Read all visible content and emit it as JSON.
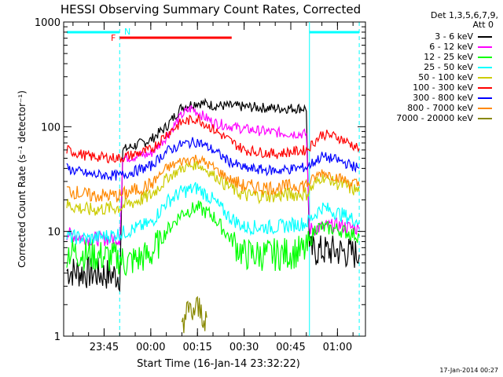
{
  "page": {
    "title": "HESSI Observing Summary Count Rates, Corrected",
    "date_stamp": "17-Jan-2014 00:27"
  },
  "legend": {
    "header_lines": [
      "Det 1,3,5,6,7,9,",
      "Att 0"
    ],
    "position": "top-right"
  },
  "chart_data": {
    "type": "line",
    "title": "HESSI Observing Summary Count Rates, Corrected",
    "xlabel": "Start Time (16-Jan-14 23:32:22)",
    "ylabel": "Corrected Count Rate (s⁻¹ detector⁻¹)",
    "y_scale": "log",
    "ylim": [
      1,
      1000
    ],
    "xlim": [
      "23:32",
      "01:09"
    ],
    "x_ticks": [
      "23:45",
      "00:00",
      "00:15",
      "00:30",
      "00:45",
      "01:00"
    ],
    "y_ticks": [
      "1",
      "10",
      "100",
      "1000"
    ],
    "grid": false,
    "annotations": [
      {
        "text": "F",
        "color": "#ff0000"
      },
      {
        "text": "N",
        "color": "#00ffff"
      }
    ],
    "time_markers": [
      {
        "time": "23:50",
        "style": "dashed",
        "color": "#00ffff"
      },
      {
        "time": "00:51",
        "style": "solid",
        "color": "#00ffff"
      },
      {
        "time": "01:07",
        "style": "dashed",
        "color": "#00ffff"
      }
    ],
    "bars": [
      {
        "name": "night",
        "color": "#00ffff",
        "segments": [
          [
            "23:33",
            "23:50"
          ],
          [
            "00:51",
            "01:07"
          ]
        ]
      },
      {
        "name": "flare",
        "color": "#ff0000",
        "segments": [
          [
            "23:50",
            "00:26"
          ]
        ]
      }
    ],
    "series": [
      {
        "name": "3 - 6 keV",
        "color": "#000000",
        "points": [
          [
            "23:33",
            4.2
          ],
          [
            "23:40",
            4.0
          ],
          [
            "23:50",
            3.8
          ],
          [
            "23:51",
            60
          ],
          [
            "00:00",
            75
          ],
          [
            "00:05",
            100
          ],
          [
            "00:10",
            155
          ],
          [
            "00:15",
            170
          ],
          [
            "00:20",
            160
          ],
          [
            "00:30",
            155
          ],
          [
            "00:40",
            150
          ],
          [
            "00:50",
            150
          ],
          [
            "00:51",
            6.5
          ],
          [
            "01:00",
            6.5
          ],
          [
            "01:07",
            6.0
          ]
        ]
      },
      {
        "name": "6 - 12 keV",
        "color": "#ff00ff",
        "points": [
          [
            "23:33",
            9.5
          ],
          [
            "23:40",
            8.5
          ],
          [
            "23:50",
            8.5
          ],
          [
            "23:51",
            50
          ],
          [
            "00:00",
            55
          ],
          [
            "00:05",
            80
          ],
          [
            "00:10",
            130
          ],
          [
            "00:13",
            150
          ],
          [
            "00:20",
            110
          ],
          [
            "00:30",
            95
          ],
          [
            "00:40",
            88
          ],
          [
            "00:50",
            85
          ],
          [
            "00:51",
            10.5
          ],
          [
            "01:00",
            11.5
          ],
          [
            "01:07",
            10.5
          ]
        ]
      },
      {
        "name": "12 - 25 keV",
        "color": "#00ff00",
        "points": [
          [
            "23:33",
            6.5
          ],
          [
            "23:40",
            6.0
          ],
          [
            "23:50",
            5.5
          ],
          [
            "23:52",
            5.0
          ],
          [
            "00:00",
            6.0
          ],
          [
            "00:05",
            10
          ],
          [
            "00:10",
            15
          ],
          [
            "00:15",
            17
          ],
          [
            "00:20",
            14
          ],
          [
            "00:25",
            9
          ],
          [
            "00:30",
            6
          ],
          [
            "00:40",
            6
          ],
          [
            "00:50",
            6.5
          ],
          [
            "00:53",
            11
          ],
          [
            "01:00",
            10.5
          ],
          [
            "01:07",
            9
          ]
        ]
      },
      {
        "name": "25 - 50 keV",
        "color": "#00ffff",
        "points": [
          [
            "23:33",
            9.0
          ],
          [
            "23:40",
            8.5
          ],
          [
            "23:50",
            9.5
          ],
          [
            "00:00",
            12
          ],
          [
            "00:05",
            19
          ],
          [
            "00:10",
            24
          ],
          [
            "00:15",
            26
          ],
          [
            "00:20",
            20
          ],
          [
            "00:25",
            14
          ],
          [
            "00:30",
            11
          ],
          [
            "00:40",
            11
          ],
          [
            "00:50",
            12
          ],
          [
            "00:55",
            17
          ],
          [
            "01:00",
            15
          ],
          [
            "01:07",
            12.5
          ]
        ]
      },
      {
        "name": "50 - 100 keV",
        "color": "#cccc00",
        "points": [
          [
            "23:33",
            18
          ],
          [
            "23:40",
            16
          ],
          [
            "23:50",
            17
          ],
          [
            "00:00",
            22
          ],
          [
            "00:05",
            32
          ],
          [
            "00:10",
            40
          ],
          [
            "00:15",
            44
          ],
          [
            "00:20",
            35
          ],
          [
            "00:25",
            27
          ],
          [
            "00:30",
            22
          ],
          [
            "00:40",
            22
          ],
          [
            "00:50",
            23
          ],
          [
            "00:55",
            33
          ],
          [
            "01:00",
            29
          ],
          [
            "01:07",
            24
          ]
        ]
      },
      {
        "name": "100 - 300 keV",
        "color": "#ff0000",
        "points": [
          [
            "23:33",
            60
          ],
          [
            "23:40",
            52
          ],
          [
            "23:50",
            50
          ],
          [
            "00:00",
            60
          ],
          [
            "00:05",
            85
          ],
          [
            "00:10",
            110
          ],
          [
            "00:15",
            120
          ],
          [
            "00:20",
            95
          ],
          [
            "00:25",
            75
          ],
          [
            "00:30",
            60
          ],
          [
            "00:40",
            55
          ],
          [
            "00:50",
            60
          ],
          [
            "00:55",
            85
          ],
          [
            "01:00",
            80
          ],
          [
            "01:07",
            62
          ]
        ]
      },
      {
        "name": "300 - 800 keV",
        "color": "#0000ff",
        "points": [
          [
            "23:33",
            40
          ],
          [
            "23:40",
            35
          ],
          [
            "23:50",
            34
          ],
          [
            "00:00",
            42
          ],
          [
            "00:05",
            58
          ],
          [
            "00:10",
            68
          ],
          [
            "00:15",
            72
          ],
          [
            "00:20",
            60
          ],
          [
            "00:25",
            47
          ],
          [
            "00:30",
            40
          ],
          [
            "00:40",
            38
          ],
          [
            "00:50",
            41
          ],
          [
            "00:55",
            52
          ],
          [
            "01:00",
            48
          ],
          [
            "01:07",
            40
          ]
        ]
      },
      {
        "name": "800 - 7000 keV",
        "color": "#ff8800",
        "points": [
          [
            "23:33",
            25
          ],
          [
            "23:40",
            22
          ],
          [
            "23:50",
            22
          ],
          [
            "00:00",
            28
          ],
          [
            "00:05",
            40
          ],
          [
            "00:10",
            47
          ],
          [
            "00:15",
            50
          ],
          [
            "00:20",
            41
          ],
          [
            "00:25",
            32
          ],
          [
            "00:30",
            27
          ],
          [
            "00:40",
            26
          ],
          [
            "00:50",
            28
          ],
          [
            "00:55",
            37
          ],
          [
            "01:00",
            33
          ],
          [
            "01:07",
            27
          ]
        ]
      },
      {
        "name": "7000 - 20000 keV",
        "color": "#888800",
        "points": [
          [
            "00:10",
            1.5
          ],
          [
            "00:15",
            1.8
          ],
          [
            "00:18",
            1.5
          ]
        ]
      }
    ]
  }
}
